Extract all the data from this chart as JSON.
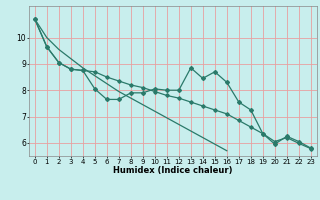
{
  "title": "",
  "xlabel": "Humidex (Indice chaleur)",
  "ylabel": "",
  "bg_color": "#c8eeed",
  "grid_color": "#e8a0a0",
  "line_color": "#2a7a6a",
  "x_values": [
    0,
    1,
    2,
    3,
    4,
    5,
    6,
    7,
    8,
    9,
    10,
    11,
    12,
    13,
    14,
    15,
    16,
    17,
    18,
    19,
    20,
    21,
    22,
    23
  ],
  "series1": [
    10.7,
    9.65,
    9.05,
    8.8,
    8.75,
    8.05,
    7.65,
    7.65,
    7.9,
    7.9,
    8.05,
    8.0,
    8.0,
    8.85,
    8.45,
    8.7,
    8.3,
    7.55,
    7.25,
    6.35,
    5.95,
    6.25,
    6.05,
    5.8
  ],
  "series2_line": [
    10.7,
    10.0,
    9.55,
    9.2,
    8.85,
    8.55,
    8.25,
    7.95,
    7.7,
    7.45,
    7.2,
    6.95,
    6.7,
    6.45,
    6.2,
    5.95,
    5.7,
    null,
    null,
    null,
    null,
    null,
    null,
    null
  ],
  "series3_line": [
    10.7,
    9.65,
    9.05,
    8.8,
    8.75,
    8.7,
    8.5,
    8.35,
    8.2,
    8.1,
    7.95,
    7.8,
    7.7,
    7.55,
    7.4,
    7.25,
    7.1,
    6.85,
    6.6,
    6.35,
    6.05,
    6.2,
    5.98,
    5.78
  ],
  "xlim": [
    -0.5,
    23.5
  ],
  "ylim": [
    5.5,
    11.2
  ],
  "yticks": [
    6,
    7,
    8,
    9,
    10
  ],
  "xticks": [
    0,
    1,
    2,
    3,
    4,
    5,
    6,
    7,
    8,
    9,
    10,
    11,
    12,
    13,
    14,
    15,
    16,
    17,
    18,
    19,
    20,
    21,
    22,
    23
  ],
  "figsize": [
    3.2,
    2.0
  ],
  "dpi": 100
}
